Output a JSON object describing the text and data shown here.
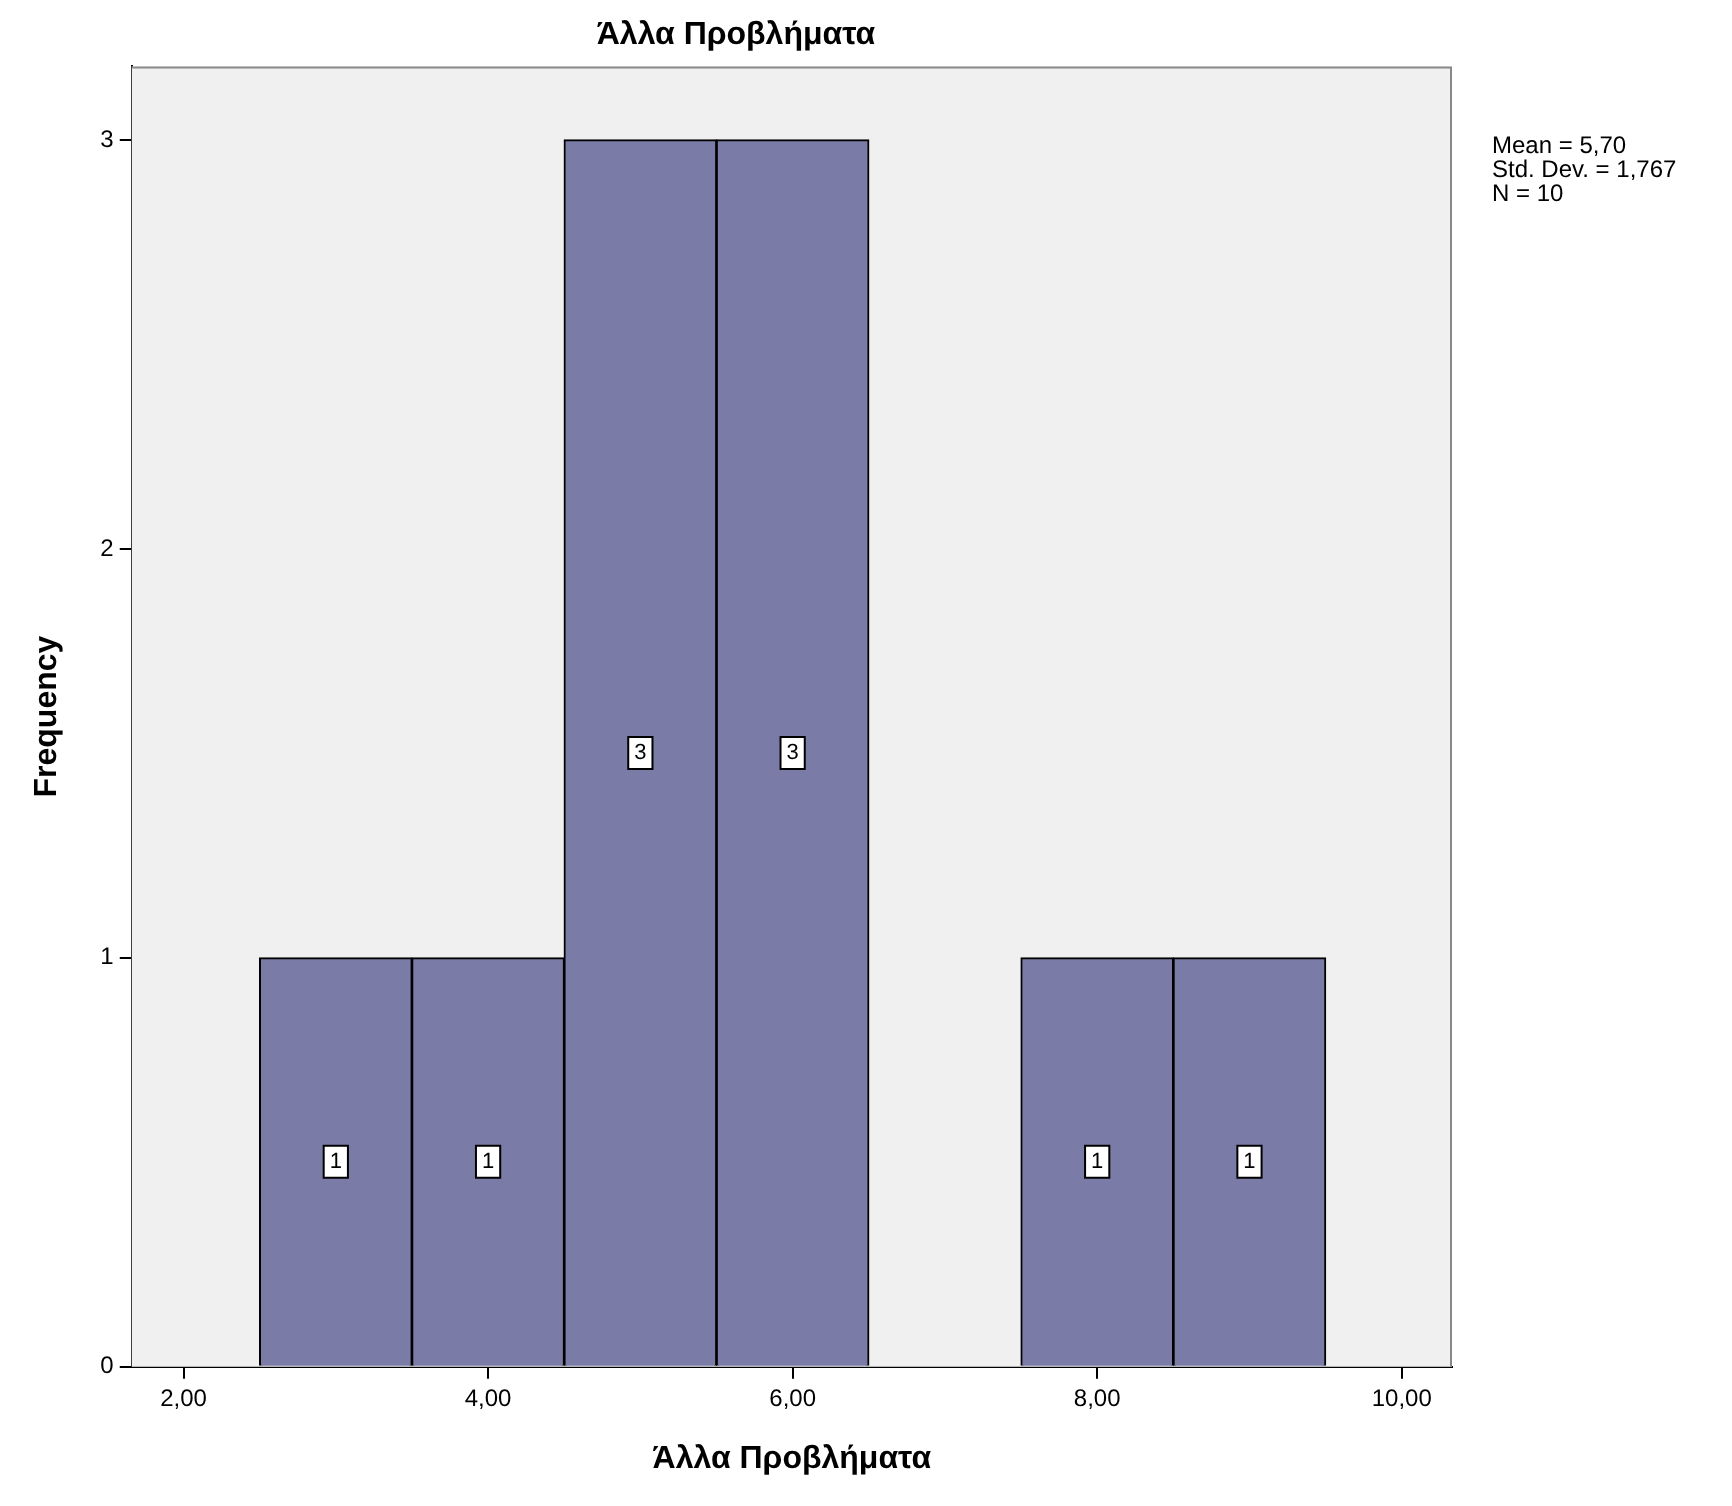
{
  "chart_data": {
    "type": "histogram",
    "title": "Άλλα Προβλήματα",
    "xlabel": "Άλλα Προβλήματα",
    "ylabel": "Frequency",
    "bins": [
      2.5,
      3.5,
      4.5,
      5.5,
      6.5,
      7.5,
      8.5,
      9.5
    ],
    "values": [
      1,
      1,
      3,
      3,
      0,
      1,
      1
    ],
    "value_labels": [
      "1",
      "1",
      "3",
      "3",
      null,
      "1",
      "1"
    ],
    "color": "#7b7ba8",
    "xlim": [
      1.66,
      10.33
    ],
    "xticks": [
      {
        "value": 2,
        "label": "2,00"
      },
      {
        "value": 4,
        "label": "4,00"
      },
      {
        "value": 6,
        "label": "6,00"
      },
      {
        "value": 8,
        "label": "8,00"
      },
      {
        "value": 10,
        "label": "10,00"
      }
    ],
    "ylim": [
      0,
      3.18
    ],
    "yticks": [
      0,
      1,
      2,
      3
    ],
    "grid": false,
    "legend": false,
    "annotations": [
      "Mean = 5,70",
      "Std. Dev. = 1,767",
      "N = 10"
    ]
  }
}
